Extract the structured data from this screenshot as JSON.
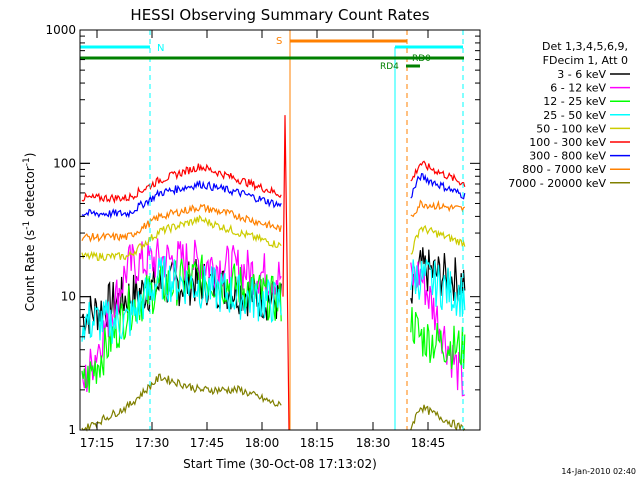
{
  "chart_data": {
    "type": "line",
    "title": "HESSI Observing Summary Count Rates",
    "xlabel": "Start Time (30-Oct-08 17:13:02)",
    "ylabel_main": "Count Rate (s",
    "ylabel_sup1": "-1",
    "ylabel_mid": " detector",
    "ylabel_sup2": "-1",
    "ylabel_end": ")",
    "yscale": "log",
    "ylim": [
      1,
      1000
    ],
    "x_ticks": [
      "17:15",
      "17:30",
      "17:45",
      "18:00",
      "18:15",
      "18:30",
      "18:45"
    ],
    "y_ticks": [
      "1",
      "10",
      "100",
      "1000"
    ],
    "legend_header": [
      "Det 1,3,4,5,6,9,",
      "FDecim 1, Att 0"
    ],
    "series": [
      {
        "name": "3 - 6 keV",
        "color": "#000000",
        "values": [
          7,
          10,
          12,
          13,
          11,
          9,
          8,
          16,
          13
        ]
      },
      {
        "name": "6 - 12 keV",
        "color": "#ff00ff",
        "values": [
          2,
          17,
          19,
          18,
          16,
          14,
          13,
          15,
          2
        ]
      },
      {
        "name": "12 - 25 keV",
        "color": "#00ff00",
        "values": [
          2,
          8,
          12,
          14,
          12,
          9,
          7,
          5,
          4
        ]
      },
      {
        "name": "25 - 50 keV",
        "color": "#00ffff",
        "values": [
          6.5,
          6.5,
          14,
          12,
          10,
          9,
          14,
          14,
          10
        ]
      },
      {
        "name": "50 - 100 keV",
        "color": "#cccc00",
        "values": [
          20,
          20,
          31,
          38,
          30,
          24,
          20,
          33,
          25
        ]
      },
      {
        "name": "100 - 300 keV",
        "color": "#ff0000",
        "values": [
          55,
          55,
          75,
          95,
          75,
          58,
          70,
          100,
          70
        ]
      },
      {
        "name": "300 - 800 keV",
        "color": "#0000ff",
        "values": [
          42,
          42,
          60,
          70,
          60,
          48,
          55,
          80,
          57
        ]
      },
      {
        "name": "800 - 7000 keV",
        "color": "#ff8000",
        "values": [
          28,
          28,
          40,
          47,
          40,
          32,
          38,
          50,
          45
        ]
      },
      {
        "name": "7000 - 20000 keV",
        "color": "#808000",
        "values": [
          1,
          1.5,
          2.5,
          2,
          2,
          1.5,
          1,
          1.5,
          1
        ]
      }
    ],
    "intervals": [
      {
        "label": "N",
        "color": "#00ffff"
      },
      {
        "label": "S",
        "color": "#ff8000"
      },
      {
        "label": "RD4",
        "color": "#008000"
      },
      {
        "label": "RD0",
        "color": "#008000"
      }
    ]
  },
  "timestamp": "14-Jan-2010 02:40"
}
